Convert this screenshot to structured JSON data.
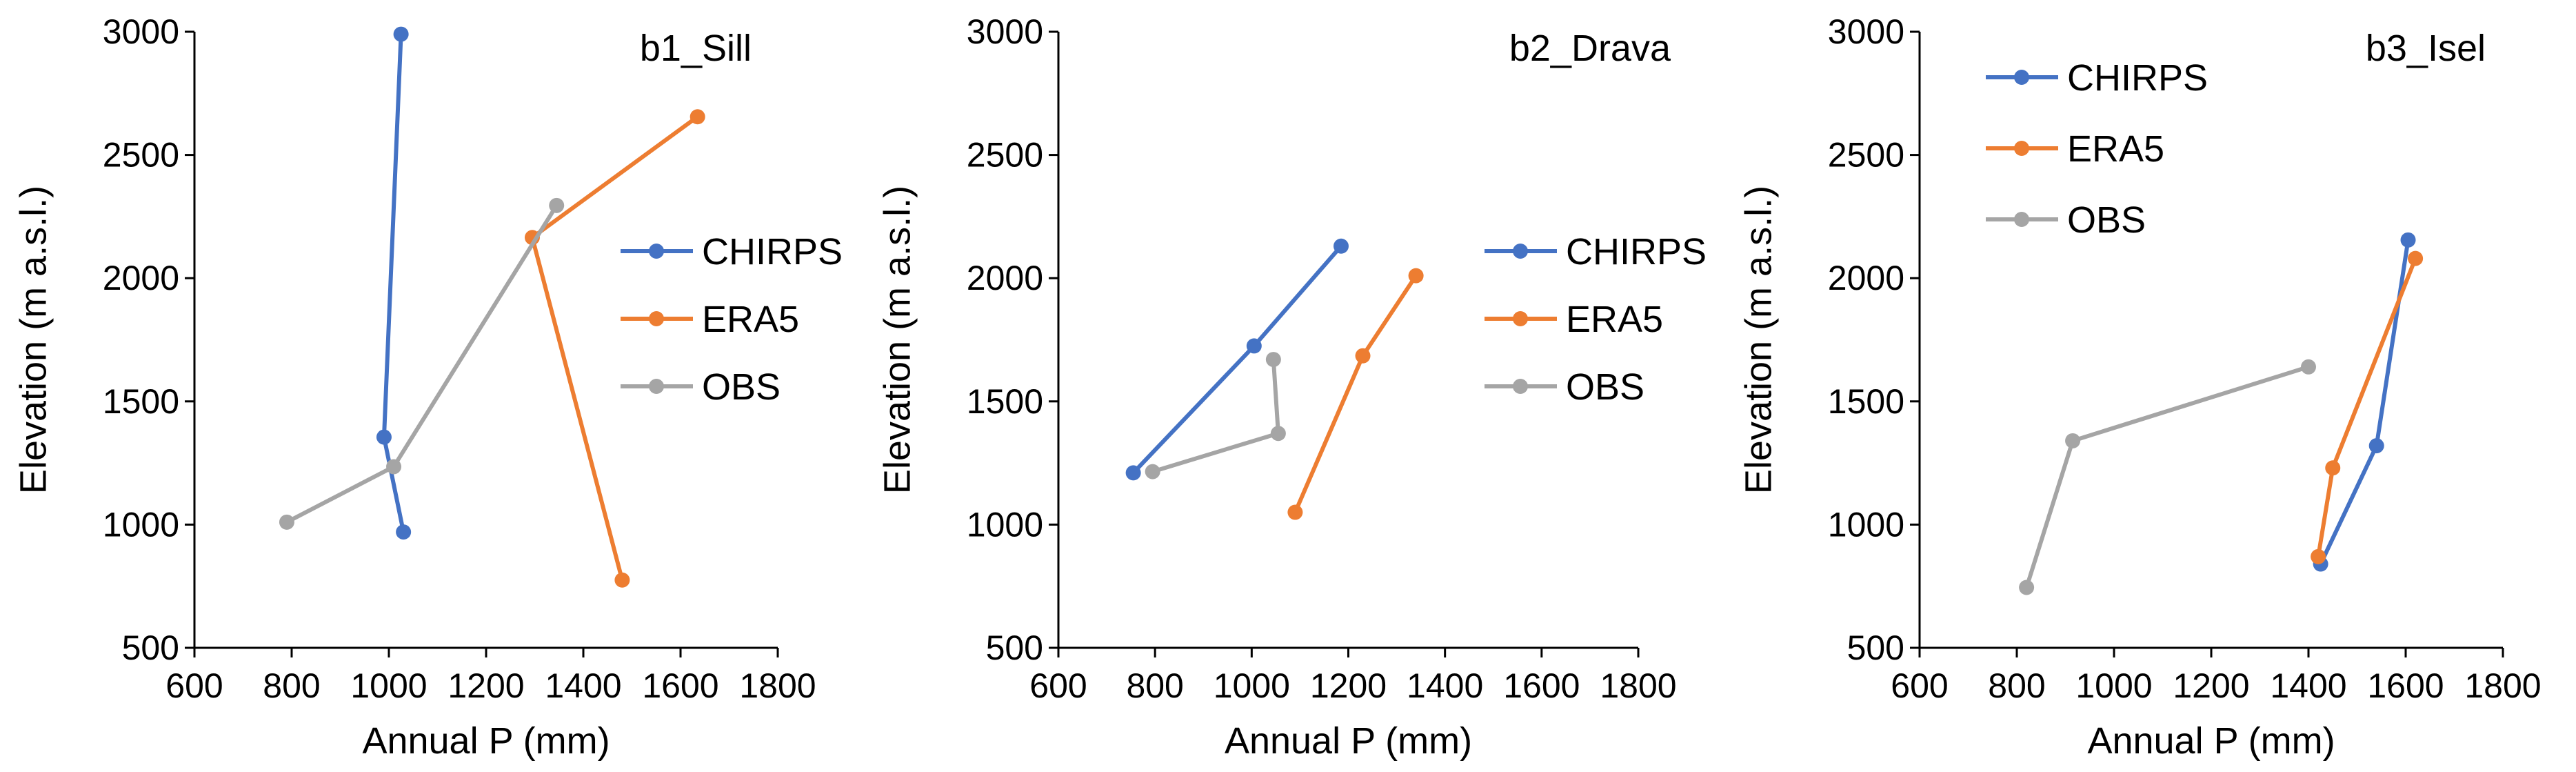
{
  "chart_data": [
    {
      "type": "line",
      "title": "b1_Sill",
      "xlabel": "Annual P (mm)",
      "ylabel": "Elevation (m a.s.l.)",
      "xlim": [
        600,
        1800
      ],
      "ylim": [
        500,
        3000
      ],
      "xticks": [
        600,
        800,
        1000,
        1200,
        1400,
        1600,
        1800
      ],
      "yticks": [
        500,
        1000,
        1500,
        2000,
        2500,
        3000
      ],
      "grid": false,
      "legend_position": "right-middle",
      "series": [
        {
          "name": "CHIRPS",
          "color": "#4472C4",
          "points": [
            [
              1030,
              970
            ],
            [
              990,
              1355
            ],
            [
              1025,
              2990
            ]
          ]
        },
        {
          "name": "ERA5",
          "color": "#ED7D31",
          "points": [
            [
              1480,
              775
            ],
            [
              1295,
              2165
            ],
            [
              1635,
              2655
            ]
          ]
        },
        {
          "name": "OBS",
          "color": "#A5A5A5",
          "points": [
            [
              790,
              1010
            ],
            [
              1010,
              1235
            ],
            [
              1345,
              2295
            ]
          ]
        }
      ]
    },
    {
      "type": "line",
      "title": "b2_Drava",
      "xlabel": "Annual P (mm)",
      "ylabel": "Elevation (m a.s.l.)",
      "xlim": [
        600,
        1800
      ],
      "ylim": [
        500,
        3000
      ],
      "xticks": [
        600,
        800,
        1000,
        1200,
        1400,
        1600,
        1800
      ],
      "yticks": [
        500,
        1000,
        1500,
        2000,
        2500,
        3000
      ],
      "grid": false,
      "legend_position": "right-middle",
      "series": [
        {
          "name": "CHIRPS",
          "color": "#4472C4",
          "points": [
            [
              755,
              1210
            ],
            [
              1005,
              1725
            ],
            [
              1185,
              2130
            ]
          ]
        },
        {
          "name": "ERA5",
          "color": "#ED7D31",
          "points": [
            [
              1090,
              1050
            ],
            [
              1230,
              1685
            ],
            [
              1340,
              2010
            ]
          ]
        },
        {
          "name": "OBS",
          "color": "#A5A5A5",
          "points": [
            [
              795,
              1215
            ],
            [
              1055,
              1370
            ],
            [
              1045,
              1670
            ]
          ]
        }
      ]
    },
    {
      "type": "line",
      "title": "b3_Isel",
      "xlabel": "Annual P (mm)",
      "ylabel": "Elevation (m a.s.l.)",
      "xlim": [
        600,
        1800
      ],
      "ylim": [
        500,
        3000
      ],
      "xticks": [
        600,
        800,
        1000,
        1200,
        1400,
        1600,
        1800
      ],
      "yticks": [
        500,
        1000,
        1500,
        2000,
        2500,
        3000
      ],
      "grid": false,
      "legend_position": "top-left",
      "series": [
        {
          "name": "CHIRPS",
          "color": "#4472C4",
          "points": [
            [
              1425,
              840
            ],
            [
              1540,
              1320
            ],
            [
              1605,
              2155
            ]
          ]
        },
        {
          "name": "ERA5",
          "color": "#ED7D31",
          "points": [
            [
              1420,
              870
            ],
            [
              1450,
              1230
            ],
            [
              1620,
              2080
            ]
          ]
        },
        {
          "name": "OBS",
          "color": "#A5A5A5",
          "points": [
            [
              820,
              745
            ],
            [
              915,
              1340
            ],
            [
              1400,
              1640
            ]
          ]
        }
      ]
    }
  ]
}
